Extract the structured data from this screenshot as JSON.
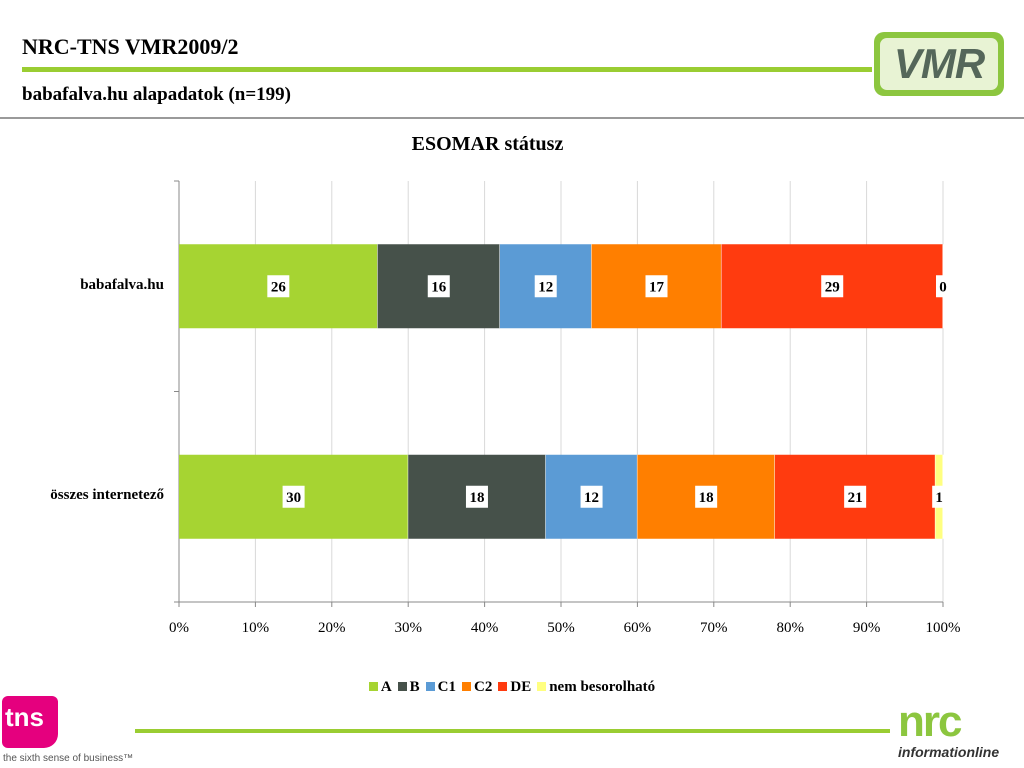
{
  "header": {
    "title": "NRC-TNS VMR2009/2",
    "subtitle": "babafalva.hu alapadatok (n=199)",
    "logo_text": "VMR"
  },
  "footer": {
    "tns_logo": "tns",
    "tns_tagline": "the sixth sense of business™",
    "nrc_logo": "nrc",
    "nrc_tagline": "informationline"
  },
  "colors": {
    "accent_green": "#9acd32",
    "A": "#a6d432",
    "B": "#46514a",
    "C1": "#5b9bd5",
    "C2": "#ff7f00",
    "DE": "#ff3b0f",
    "nem besorolható": "#ffff80"
  },
  "chart_data": {
    "type": "bar",
    "orientation": "horizontal",
    "stacked": "percent",
    "title": "ESOMAR státusz",
    "categories": [
      "babafalva.hu",
      "összes internetező"
    ],
    "series": [
      {
        "name": "A",
        "values": [
          26,
          30
        ]
      },
      {
        "name": "B",
        "values": [
          16,
          18
        ]
      },
      {
        "name": "C1",
        "values": [
          12,
          12
        ]
      },
      {
        "name": "C2",
        "values": [
          17,
          18
        ]
      },
      {
        "name": "DE",
        "values": [
          29,
          21
        ]
      },
      {
        "name": "nem besorolható",
        "values": [
          0,
          1
        ]
      }
    ],
    "x_ticks": [
      "0%",
      "10%",
      "20%",
      "30%",
      "40%",
      "50%",
      "60%",
      "70%",
      "80%",
      "90%",
      "100%"
    ],
    "xlim": [
      0,
      100
    ],
    "grid": true,
    "legend_position": "bottom"
  }
}
